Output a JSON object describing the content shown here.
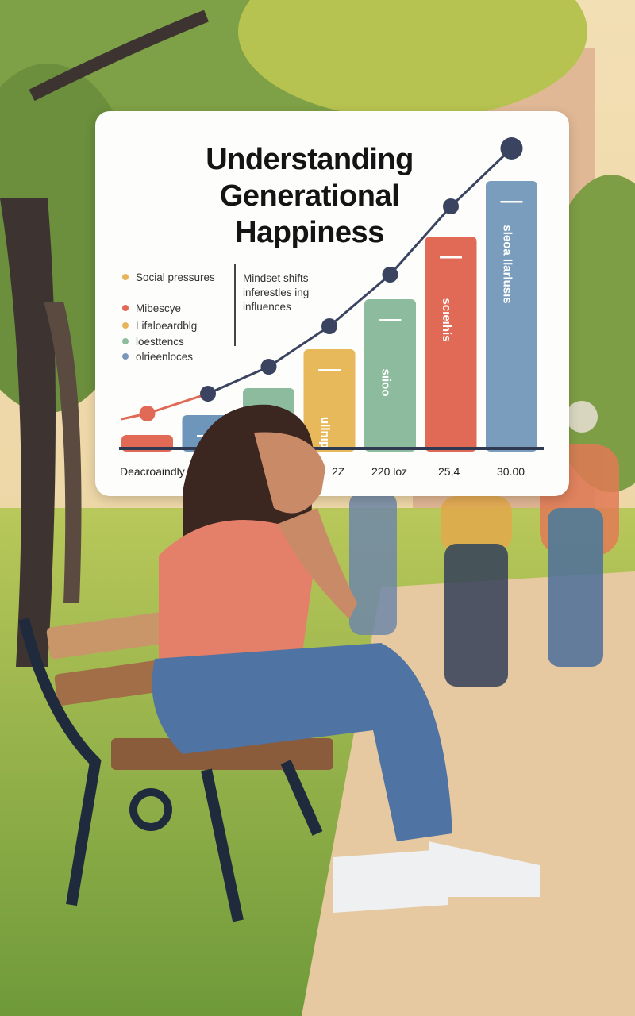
{
  "chart_data": {
    "type": "bar",
    "title": "Understanding Generational Happiness",
    "legend": [
      {
        "label": "Social pressures",
        "color": "#e8b45a"
      },
      {
        "label": "Mibescye",
        "color": "#e06a55"
      },
      {
        "label": "Lifaloeardblg",
        "color": "#e8b45a"
      },
      {
        "label": "loesttencs",
        "color": "#8dbb9e"
      },
      {
        "label": "olrieenloces",
        "color": "#7a96b8"
      }
    ],
    "legend_placement": "top-left",
    "annotation": "Mindset shifts\ninferestles ing\ninfluences",
    "x_tick_labels": [
      "Deacroaindly NG",
      "2Z",
      "220 loz",
      "25,4",
      "30.00"
    ],
    "bar_values_relative": [
      17,
      42,
      76,
      125,
      188,
      267,
      337
    ],
    "bar_colors": [
      "#e06a55",
      "#6e95ba",
      "#8dbb9e",
      "#e8b95a",
      "#8dbb9e",
      "#e06a55",
      "#7a9cbd"
    ],
    "bar_labels": [
      "",
      "",
      "",
      "ullnıp",
      "sıioo",
      "scıeıhis",
      "sleoa llarlusıs"
    ],
    "line_values_relative": [
      44,
      69,
      103,
      154,
      219,
      305,
      378
    ],
    "line_colors": {
      "start": "#e06a55",
      "main": "#3a4460"
    },
    "grid": false
  }
}
